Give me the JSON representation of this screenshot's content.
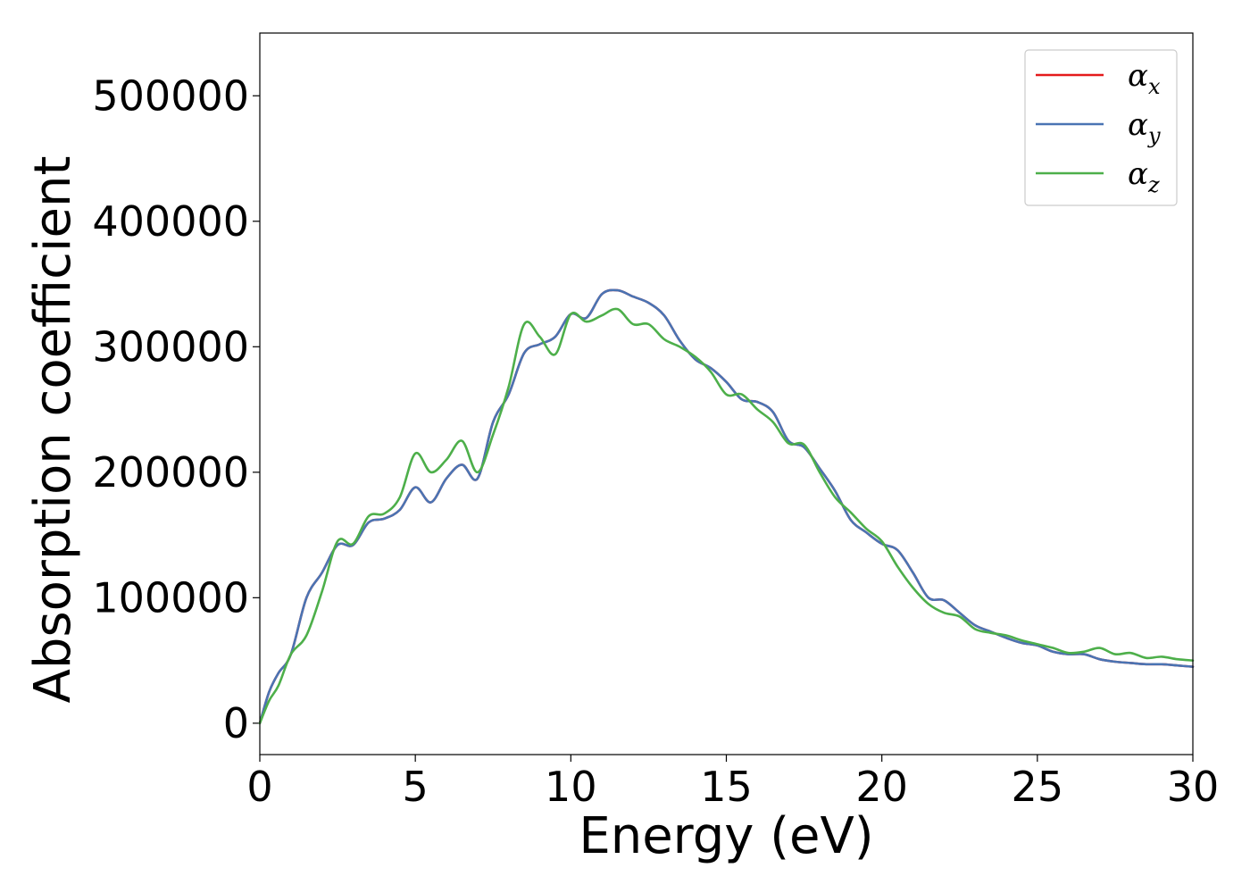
{
  "chart_data": {
    "type": "line",
    "xlabel": "Energy (eV)",
    "ylabel": "Absorption coefficient",
    "xlim": [
      0,
      30
    ],
    "ylim": [
      -25000,
      550000
    ],
    "xticks": [
      0,
      5,
      10,
      15,
      20,
      25,
      30
    ],
    "yticks": [
      0,
      100000,
      200000,
      300000,
      400000,
      500000
    ],
    "grid": false,
    "legend_position": "top-right",
    "series": [
      {
        "name": "αx",
        "symbol": "α",
        "subscript": "x",
        "color": "#e41a1c",
        "x": [
          0,
          0.3,
          0.6,
          1.0,
          1.5,
          2.0,
          2.5,
          3.0,
          3.5,
          4.0,
          4.5,
          5.0,
          5.5,
          6.0,
          6.5,
          7.0,
          7.5,
          8.0,
          8.5,
          9.0,
          9.5,
          10.0,
          10.5,
          11.0,
          11.5,
          12.0,
          12.5,
          13.0,
          13.5,
          14.0,
          14.5,
          15.0,
          15.5,
          16.0,
          16.5,
          17.0,
          17.5,
          18.0,
          18.5,
          19.0,
          19.5,
          20.0,
          20.5,
          21.0,
          21.5,
          22.0,
          22.5,
          23.0,
          23.5,
          24.0,
          24.5,
          25.0,
          25.5,
          26.0,
          26.5,
          27.0,
          27.5,
          28.0,
          28.5,
          29.0,
          29.5,
          30.0
        ],
        "y": [
          0,
          25000,
          40000,
          55000,
          100000,
          120000,
          142000,
          142000,
          160000,
          163000,
          170000,
          188000,
          176000,
          195000,
          206000,
          195000,
          240000,
          262000,
          295000,
          302000,
          308000,
          326000,
          323000,
          342000,
          345000,
          340000,
          335000,
          325000,
          305000,
          290000,
          283000,
          272000,
          258000,
          256000,
          248000,
          225000,
          220000,
          203000,
          185000,
          162000,
          152000,
          143000,
          138000,
          120000,
          100000,
          98000,
          88000,
          78000,
          73000,
          68000,
          64000,
          62000,
          57000,
          55000,
          55000,
          51000,
          49000,
          48000,
          47000,
          47000,
          46000,
          45000
        ]
      },
      {
        "name": "αy",
        "symbol": "α",
        "subscript": "y",
        "color": "#4a74b3",
        "x": [
          0,
          0.3,
          0.6,
          1.0,
          1.5,
          2.0,
          2.5,
          3.0,
          3.5,
          4.0,
          4.5,
          5.0,
          5.5,
          6.0,
          6.5,
          7.0,
          7.5,
          8.0,
          8.5,
          9.0,
          9.5,
          10.0,
          10.5,
          11.0,
          11.5,
          12.0,
          12.5,
          13.0,
          13.5,
          14.0,
          14.5,
          15.0,
          15.5,
          16.0,
          16.5,
          17.0,
          17.5,
          18.0,
          18.5,
          19.0,
          19.5,
          20.0,
          20.5,
          21.0,
          21.5,
          22.0,
          22.5,
          23.0,
          23.5,
          24.0,
          24.5,
          25.0,
          25.5,
          26.0,
          26.5,
          27.0,
          27.5,
          28.0,
          28.5,
          29.0,
          29.5,
          30.0
        ],
        "y": [
          0,
          25000,
          40000,
          55000,
          100000,
          120000,
          142000,
          142000,
          160000,
          163000,
          170000,
          188000,
          176000,
          195000,
          206000,
          195000,
          240000,
          262000,
          295000,
          302000,
          308000,
          326000,
          323000,
          342000,
          345000,
          340000,
          335000,
          325000,
          305000,
          290000,
          283000,
          272000,
          258000,
          256000,
          248000,
          225000,
          220000,
          203000,
          185000,
          162000,
          152000,
          143000,
          138000,
          120000,
          100000,
          98000,
          88000,
          78000,
          73000,
          68000,
          64000,
          62000,
          57000,
          55000,
          55000,
          51000,
          49000,
          48000,
          47000,
          47000,
          46000,
          45000
        ]
      },
      {
        "name": "αz",
        "symbol": "α",
        "subscript": "z",
        "color": "#4daf4a",
        "x": [
          0,
          0.3,
          0.6,
          1.0,
          1.5,
          2.0,
          2.5,
          3.0,
          3.5,
          4.0,
          4.5,
          5.0,
          5.5,
          6.0,
          6.5,
          7.0,
          7.5,
          8.0,
          8.5,
          9.0,
          9.5,
          10.0,
          10.5,
          11.0,
          11.5,
          12.0,
          12.5,
          13.0,
          13.5,
          14.0,
          14.5,
          15.0,
          15.5,
          16.0,
          16.5,
          17.0,
          17.5,
          18.0,
          18.5,
          19.0,
          19.5,
          20.0,
          20.5,
          21.0,
          21.5,
          22.0,
          22.5,
          23.0,
          23.5,
          24.0,
          24.5,
          25.0,
          25.5,
          26.0,
          26.5,
          27.0,
          27.5,
          28.0,
          28.5,
          29.0,
          29.5,
          30.0
        ],
        "y": [
          0,
          18000,
          30000,
          55000,
          70000,
          105000,
          145000,
          143000,
          165000,
          167000,
          180000,
          215000,
          200000,
          210000,
          225000,
          200000,
          230000,
          268000,
          318000,
          308000,
          294000,
          326000,
          320000,
          325000,
          330000,
          318000,
          318000,
          306000,
          300000,
          292000,
          280000,
          262000,
          262000,
          250000,
          240000,
          223000,
          222000,
          200000,
          180000,
          168000,
          155000,
          145000,
          125000,
          108000,
          95000,
          88000,
          85000,
          75000,
          72000,
          70000,
          66000,
          63000,
          60000,
          56000,
          57000,
          60000,
          55000,
          56000,
          52000,
          53000,
          51000,
          50000
        ]
      }
    ]
  }
}
